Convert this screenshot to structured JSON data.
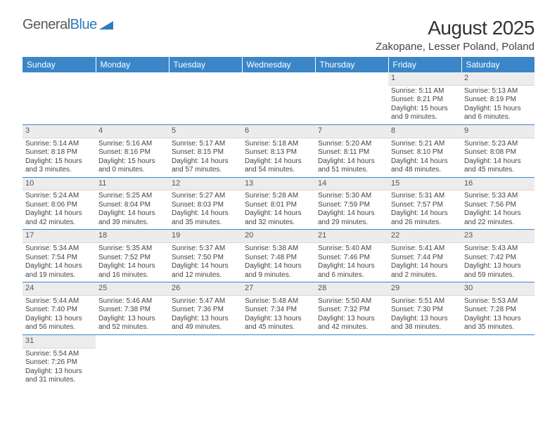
{
  "logo": {
    "text_gray": "General",
    "text_blue": "Blue"
  },
  "title": "August 2025",
  "location": "Zakopane, Lesser Poland, Poland",
  "colors": {
    "header_bg": "#3a86c8",
    "header_text": "#ffffff",
    "daynum_bg": "#ececec",
    "row_border": "#3a86c8",
    "text": "#444444",
    "logo_gray": "#5a5a5a",
    "logo_blue": "#2e7bc0"
  },
  "weekdays": [
    "Sunday",
    "Monday",
    "Tuesday",
    "Wednesday",
    "Thursday",
    "Friday",
    "Saturday"
  ],
  "weeks": [
    [
      null,
      null,
      null,
      null,
      null,
      {
        "n": "1",
        "sr": "5:11 AM",
        "ss": "8:21 PM",
        "dl1": "Daylight: 15 hours",
        "dl2": "and 9 minutes."
      },
      {
        "n": "2",
        "sr": "5:13 AM",
        "ss": "8:19 PM",
        "dl1": "Daylight: 15 hours",
        "dl2": "and 6 minutes."
      }
    ],
    [
      {
        "n": "3",
        "sr": "5:14 AM",
        "ss": "8:18 PM",
        "dl1": "Daylight: 15 hours",
        "dl2": "and 3 minutes."
      },
      {
        "n": "4",
        "sr": "5:16 AM",
        "ss": "8:16 PM",
        "dl1": "Daylight: 15 hours",
        "dl2": "and 0 minutes."
      },
      {
        "n": "5",
        "sr": "5:17 AM",
        "ss": "8:15 PM",
        "dl1": "Daylight: 14 hours",
        "dl2": "and 57 minutes."
      },
      {
        "n": "6",
        "sr": "5:18 AM",
        "ss": "8:13 PM",
        "dl1": "Daylight: 14 hours",
        "dl2": "and 54 minutes."
      },
      {
        "n": "7",
        "sr": "5:20 AM",
        "ss": "8:11 PM",
        "dl1": "Daylight: 14 hours",
        "dl2": "and 51 minutes."
      },
      {
        "n": "8",
        "sr": "5:21 AM",
        "ss": "8:10 PM",
        "dl1": "Daylight: 14 hours",
        "dl2": "and 48 minutes."
      },
      {
        "n": "9",
        "sr": "5:23 AM",
        "ss": "8:08 PM",
        "dl1": "Daylight: 14 hours",
        "dl2": "and 45 minutes."
      }
    ],
    [
      {
        "n": "10",
        "sr": "5:24 AM",
        "ss": "8:06 PM",
        "dl1": "Daylight: 14 hours",
        "dl2": "and 42 minutes."
      },
      {
        "n": "11",
        "sr": "5:25 AM",
        "ss": "8:04 PM",
        "dl1": "Daylight: 14 hours",
        "dl2": "and 39 minutes."
      },
      {
        "n": "12",
        "sr": "5:27 AM",
        "ss": "8:03 PM",
        "dl1": "Daylight: 14 hours",
        "dl2": "and 35 minutes."
      },
      {
        "n": "13",
        "sr": "5:28 AM",
        "ss": "8:01 PM",
        "dl1": "Daylight: 14 hours",
        "dl2": "and 32 minutes."
      },
      {
        "n": "14",
        "sr": "5:30 AM",
        "ss": "7:59 PM",
        "dl1": "Daylight: 14 hours",
        "dl2": "and 29 minutes."
      },
      {
        "n": "15",
        "sr": "5:31 AM",
        "ss": "7:57 PM",
        "dl1": "Daylight: 14 hours",
        "dl2": "and 26 minutes."
      },
      {
        "n": "16",
        "sr": "5:33 AM",
        "ss": "7:56 PM",
        "dl1": "Daylight: 14 hours",
        "dl2": "and 22 minutes."
      }
    ],
    [
      {
        "n": "17",
        "sr": "5:34 AM",
        "ss": "7:54 PM",
        "dl1": "Daylight: 14 hours",
        "dl2": "and 19 minutes."
      },
      {
        "n": "18",
        "sr": "5:35 AM",
        "ss": "7:52 PM",
        "dl1": "Daylight: 14 hours",
        "dl2": "and 16 minutes."
      },
      {
        "n": "19",
        "sr": "5:37 AM",
        "ss": "7:50 PM",
        "dl1": "Daylight: 14 hours",
        "dl2": "and 12 minutes."
      },
      {
        "n": "20",
        "sr": "5:38 AM",
        "ss": "7:48 PM",
        "dl1": "Daylight: 14 hours",
        "dl2": "and 9 minutes."
      },
      {
        "n": "21",
        "sr": "5:40 AM",
        "ss": "7:46 PM",
        "dl1": "Daylight: 14 hours",
        "dl2": "and 6 minutes."
      },
      {
        "n": "22",
        "sr": "5:41 AM",
        "ss": "7:44 PM",
        "dl1": "Daylight: 14 hours",
        "dl2": "and 2 minutes."
      },
      {
        "n": "23",
        "sr": "5:43 AM",
        "ss": "7:42 PM",
        "dl1": "Daylight: 13 hours",
        "dl2": "and 59 minutes."
      }
    ],
    [
      {
        "n": "24",
        "sr": "5:44 AM",
        "ss": "7:40 PM",
        "dl1": "Daylight: 13 hours",
        "dl2": "and 56 minutes."
      },
      {
        "n": "25",
        "sr": "5:46 AM",
        "ss": "7:38 PM",
        "dl1": "Daylight: 13 hours",
        "dl2": "and 52 minutes."
      },
      {
        "n": "26",
        "sr": "5:47 AM",
        "ss": "7:36 PM",
        "dl1": "Daylight: 13 hours",
        "dl2": "and 49 minutes."
      },
      {
        "n": "27",
        "sr": "5:48 AM",
        "ss": "7:34 PM",
        "dl1": "Daylight: 13 hours",
        "dl2": "and 45 minutes."
      },
      {
        "n": "28",
        "sr": "5:50 AM",
        "ss": "7:32 PM",
        "dl1": "Daylight: 13 hours",
        "dl2": "and 42 minutes."
      },
      {
        "n": "29",
        "sr": "5:51 AM",
        "ss": "7:30 PM",
        "dl1": "Daylight: 13 hours",
        "dl2": "and 38 minutes."
      },
      {
        "n": "30",
        "sr": "5:53 AM",
        "ss": "7:28 PM",
        "dl1": "Daylight: 13 hours",
        "dl2": "and 35 minutes."
      }
    ],
    [
      {
        "n": "31",
        "sr": "5:54 AM",
        "ss": "7:26 PM",
        "dl1": "Daylight: 13 hours",
        "dl2": "and 31 minutes."
      },
      null,
      null,
      null,
      null,
      null,
      null
    ]
  ],
  "labels": {
    "sunrise_prefix": "Sunrise: ",
    "sunset_prefix": "Sunset: "
  }
}
